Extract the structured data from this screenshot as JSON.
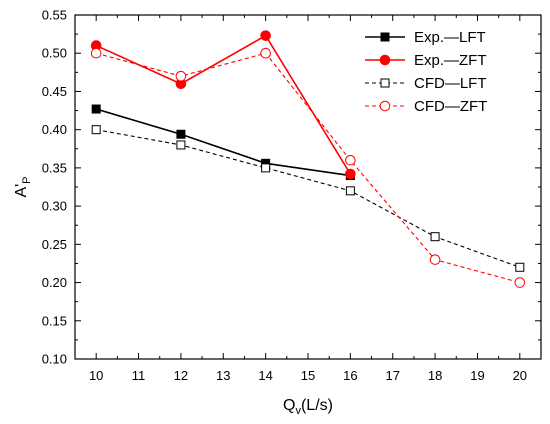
{
  "chart_data": {
    "type": "line",
    "title": "",
    "xlabel": {
      "main": "Q",
      "sub": "v",
      "rest": "(L/s)"
    },
    "ylabel": {
      "main": "A'",
      "sub": "P"
    },
    "xlim": [
      9.5,
      20.5
    ],
    "ylim": [
      0.1,
      0.55
    ],
    "x_ticks": [
      10,
      11,
      12,
      13,
      14,
      15,
      16,
      17,
      18,
      19,
      20
    ],
    "y_ticks": [
      0.1,
      0.15,
      0.2,
      0.25,
      0.3,
      0.35,
      0.4,
      0.45,
      0.5,
      0.55
    ],
    "y_tick_labels": [
      "0.10",
      "0.15",
      "0.20",
      "0.25",
      "0.30",
      "0.35",
      "0.40",
      "0.45",
      "0.50",
      "0.55"
    ],
    "grid": false,
    "legend_position": "top-right",
    "series": [
      {
        "name": "Exp.—LFT",
        "color": "#000000",
        "dashed": false,
        "marker": "square",
        "filled": true,
        "x": [
          10,
          12,
          14,
          16
        ],
        "y": [
          0.427,
          0.394,
          0.356,
          0.34
        ]
      },
      {
        "name": "Exp.—ZFT",
        "color": "#ff0000",
        "dashed": false,
        "marker": "circle",
        "filled": true,
        "x": [
          10,
          12,
          14,
          16
        ],
        "y": [
          0.51,
          0.46,
          0.523,
          0.342
        ]
      },
      {
        "name": "CFD—LFT",
        "color": "#000000",
        "dashed": true,
        "marker": "square",
        "filled": false,
        "x": [
          10,
          12,
          14,
          16,
          18,
          20
        ],
        "y": [
          0.4,
          0.38,
          0.35,
          0.32,
          0.26,
          0.22
        ]
      },
      {
        "name": "CFD—ZFT",
        "color": "#ff0000",
        "dashed": true,
        "marker": "circle",
        "filled": false,
        "x": [
          10,
          12,
          14,
          16,
          18,
          20
        ],
        "y": [
          0.5,
          0.47,
          0.5,
          0.36,
          0.23,
          0.2
        ]
      }
    ]
  }
}
